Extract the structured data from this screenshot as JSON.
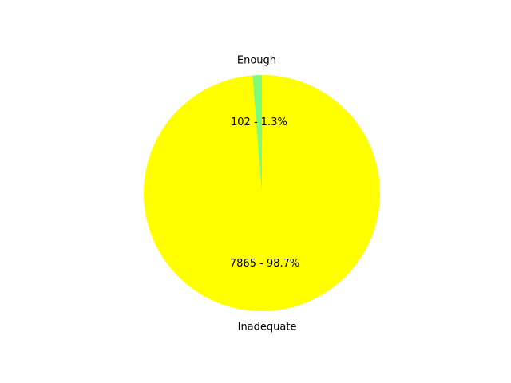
{
  "chart_data": {
    "type": "pie",
    "title": "",
    "slices": [
      {
        "label": "Enough",
        "value": 102,
        "percent": 1.3,
        "value_label": "102 - 1.3%",
        "color": "#7cfc7c"
      },
      {
        "label": "Inadequate",
        "value": 7865,
        "percent": 98.7,
        "value_label": "7865 - 98.7%",
        "color": "#ffff00"
      }
    ],
    "start_angle_deg": 90,
    "direction": "counterclockwise",
    "legend": "none"
  }
}
